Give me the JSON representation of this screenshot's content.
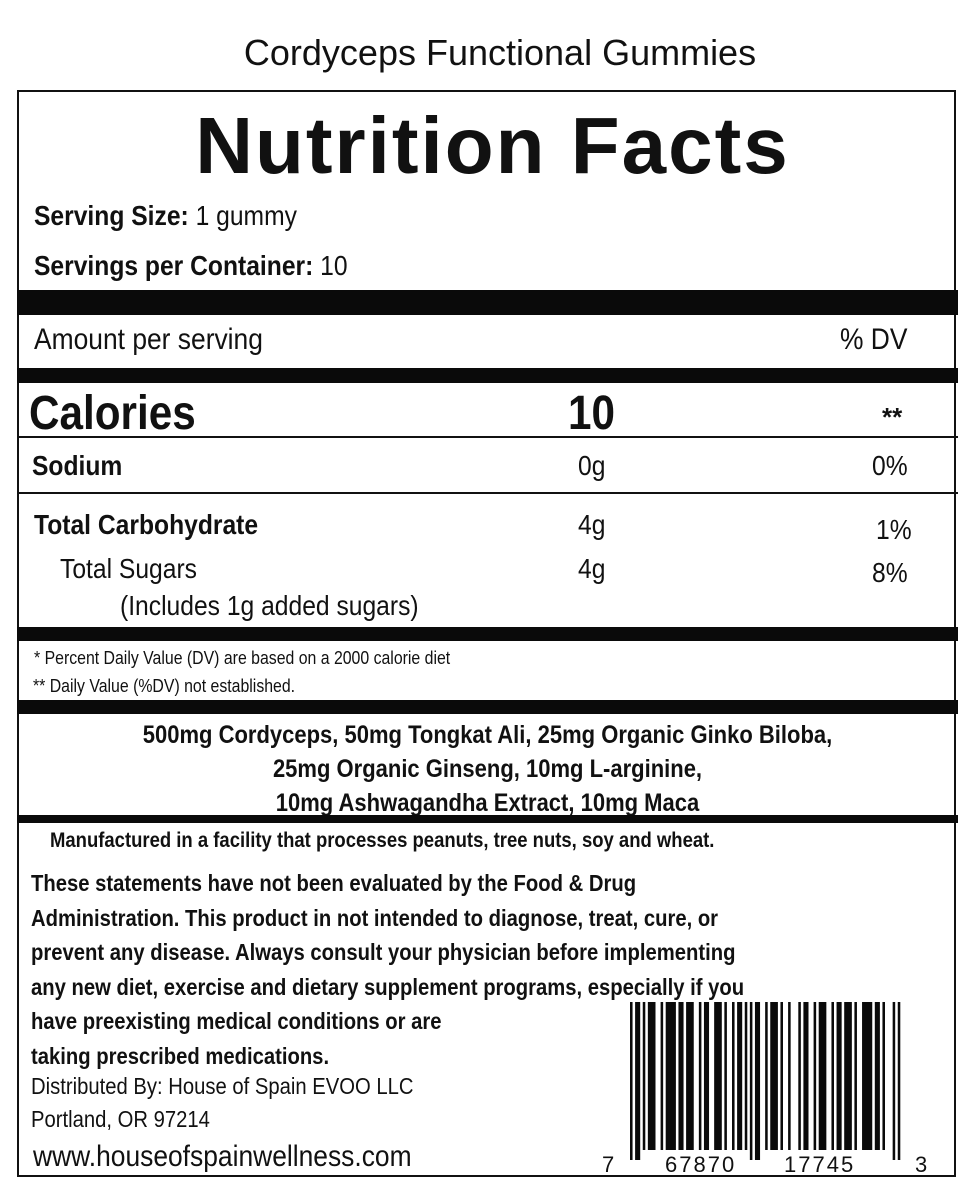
{
  "product_name": "Cordyceps Functional Gummies",
  "title": "Nutrition Facts",
  "serving_size": {
    "label": "Serving Size:",
    "value": "1 gummy"
  },
  "servings_per_container": {
    "label": "Servings per Container:",
    "value": "10"
  },
  "header": {
    "amount_label": "Amount per serving",
    "dv_label": "% DV"
  },
  "calories": {
    "label": "Calories",
    "value": "10",
    "dv": "**"
  },
  "nutrients": [
    {
      "label": "Sodium",
      "amount": "0g",
      "dv": "0%"
    },
    {
      "label": "Total Carbohydrate",
      "amount": "4g",
      "dv": "1%"
    },
    {
      "label": "Total Sugars",
      "amount": "4g",
      "dv": "8%",
      "sub": "(Includes 1g added sugars)"
    }
  ],
  "footnotes": [
    "* Percent Daily Value (DV) are based on a 2000 calorie diet",
    "** Daily Value (%DV) not established."
  ],
  "ingredients": [
    "500mg Cordyceps, 50mg Tongkat Ali, 25mg Organic Ginko Biloba,",
    "25mg Organic Ginseng, 10mg L-arginine,",
    "10mg Ashwagandha Extract, 10mg Maca"
  ],
  "allergen": "Manufactured in a facility that processes peanuts, tree nuts, soy and wheat.",
  "disclaimer": [
    "These statements have not been evaluated by the Food & Drug",
    "Administration. This product in not intended to diagnose, treat, cure, or",
    "prevent any disease. Always consult your physician before implementing",
    "any new diet, exercise and dietary supplement programs, especially if you",
    "have preexisting medical conditions or are",
    "taking prescribed medications."
  ],
  "distributor": [
    "Distributed By: House of Spain EVOO LLC",
    "Portland, OR 97214"
  ],
  "website": "www.houseofspainwellness.com",
  "barcode": {
    "first": "7",
    "left": "67870",
    "right": "17745",
    "last": "3"
  }
}
